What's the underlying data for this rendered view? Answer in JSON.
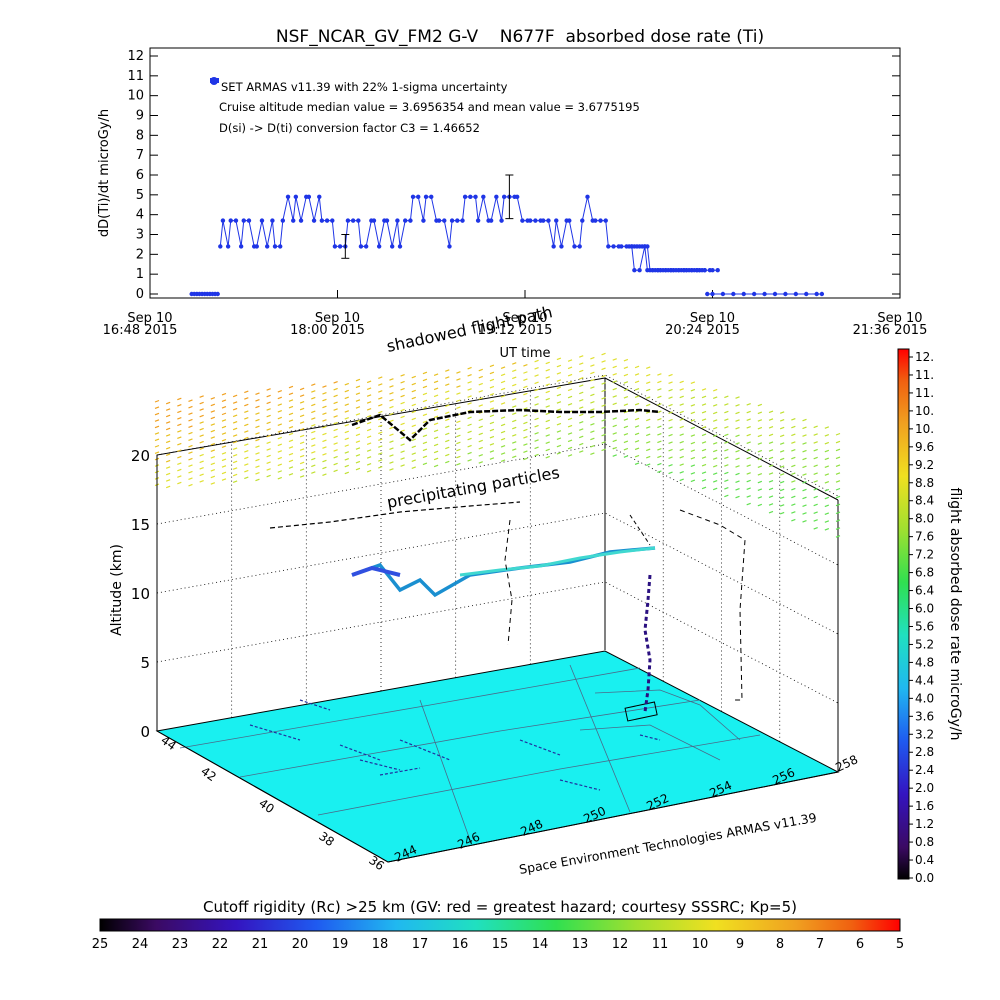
{
  "chart_data": [
    {
      "type": "line",
      "title": "NSF_NCAR_GV_FM2 G-V    N677F  absorbed dose rate (Ti)",
      "ylabel": "dD(Ti)/dt microGy/h",
      "xlabel": "UT time",
      "ylim": [
        0,
        12
      ],
      "yticks": [
        "0",
        "1",
        "2",
        "3",
        "4",
        "5",
        "6",
        "7",
        "8",
        "9",
        "10",
        "11",
        "12"
      ],
      "xticks": [
        {
          "date": "Sep 10",
          "time": "16:48 2015"
        },
        {
          "date": "Sep 10",
          "time": "18:00 2015"
        },
        {
          "date": "Sep 10",
          "time": "19:12 2015"
        },
        {
          "date": "Sep 10",
          "time": "20:24 2015"
        },
        {
          "date": "Sep 10",
          "time": "21:36 2015"
        }
      ],
      "x_minutes_range": [
        0,
        288
      ],
      "legend": [
        "SET ARMAS v11.39 with 22% 1-sigma uncertainty",
        "Cruise altitude median value = 3.6956354 and mean value = 3.6775195",
        "D(si) -> D(ti) conversion factor C3 = 1.46652"
      ],
      "series_color": "#1f35e6",
      "series": [
        {
          "x": [
            16,
            17,
            18,
            19,
            20,
            21,
            22,
            23,
            24,
            25,
            26
          ],
          "y": [
            0,
            0,
            0,
            0,
            0,
            0,
            0,
            0,
            0,
            0,
            0
          ]
        },
        {
          "x": [
            27,
            28,
            30,
            31,
            33,
            35,
            36,
            38,
            40,
            41,
            43,
            45,
            47,
            48,
            50,
            51,
            53,
            55,
            56,
            58,
            60,
            61,
            63,
            65,
            66,
            68,
            70,
            71,
            73,
            75,
            76,
            78,
            80,
            81,
            83,
            85,
            86,
            88,
            90,
            91,
            93,
            95,
            96,
            98,
            100,
            101,
            103,
            105,
            106,
            108,
            110,
            111,
            113,
            115,
            116,
            118,
            120,
            121,
            123,
            125,
            126,
            128,
            130,
            131,
            133,
            135,
            136,
            138,
            140,
            141,
            143,
            145,
            146,
            148,
            150,
            151,
            153,
            155,
            156,
            158,
            160,
            161,
            163,
            165,
            166,
            168,
            170,
            171,
            173,
            175,
            176,
            178,
            180,
            181,
            183,
            185,
            186,
            188,
            190,
            191,
            193,
            195,
            196,
            198,
            200,
            201,
            203,
            205,
            206,
            208,
            210,
            211,
            213,
            215,
            216,
            218
          ],
          "y": [
            2.4,
            3.7,
            2.4,
            3.7,
            3.7,
            2.4,
            3.7,
            3.7,
            2.4,
            2.4,
            3.7,
            2.4,
            3.7,
            2.4,
            2.4,
            3.7,
            4.9,
            3.7,
            4.9,
            3.7,
            4.9,
            4.9,
            3.7,
            4.9,
            3.7,
            3.7,
            3.7,
            2.4,
            2.4,
            2.4,
            3.7,
            3.7,
            3.7,
            2.4,
            2.4,
            3.7,
            3.7,
            2.4,
            3.7,
            3.7,
            2.4,
            3.7,
            2.4,
            3.7,
            3.7,
            4.9,
            4.9,
            3.7,
            4.9,
            4.9,
            3.7,
            3.7,
            3.7,
            2.4,
            3.7,
            3.7,
            3.7,
            4.9,
            4.9,
            4.9,
            3.7,
            4.9,
            3.7,
            3.7,
            4.9,
            3.7,
            4.9,
            4.9,
            4.9,
            4.9,
            3.7,
            3.7,
            3.7,
            3.7,
            3.7,
            3.7,
            3.7,
            2.4,
            3.7,
            2.4,
            3.7,
            3.7,
            2.4,
            2.4,
            3.7,
            4.9,
            3.7,
            3.7,
            3.7,
            3.7,
            2.4,
            2.4,
            2.4,
            2.4,
            2.4,
            2.4,
            1.2,
            1.2,
            2.4,
            1.2,
            1.2,
            1.2,
            1.2,
            1.2,
            1.2,
            1.2,
            1.2,
            1.2,
            1.2,
            1.2,
            1.2,
            1.2,
            1.2,
            1.2,
            1.2,
            1.2
          ]
        },
        {
          "x": [
            184,
            185,
            186,
            187,
            188,
            189,
            190,
            191,
            192,
            193,
            194,
            195,
            196,
            197,
            198,
            199,
            200,
            201,
            202,
            203,
            204,
            205,
            206,
            207,
            208,
            209,
            210,
            211,
            212,
            213
          ],
          "y": [
            2.4,
            2.4,
            2.4,
            2.4,
            2.4,
            2.4,
            2.4,
            2.4,
            1.2,
            1.2,
            1.2,
            1.2,
            1.2,
            1.2,
            1.2,
            1.2,
            1.2,
            1.2,
            1.2,
            1.2,
            1.2,
            1.2,
            1.2,
            1.2,
            1.2,
            1.2,
            1.2,
            1.2,
            1.2,
            1.2
          ]
        },
        {
          "x": [
            214,
            216,
            220,
            224,
            228,
            232,
            236,
            240,
            244,
            248,
            252,
            256,
            258
          ],
          "y": [
            0,
            0,
            0,
            0,
            0,
            0,
            0,
            0,
            0,
            0,
            0,
            0,
            0
          ]
        }
      ],
      "error_bars": [
        {
          "x": 75,
          "y": 2.4,
          "low": 1.8,
          "high": 3.0
        },
        {
          "x": 138,
          "y": 4.9,
          "low": 3.8,
          "high": 6.0
        }
      ]
    },
    {
      "type": "scatter",
      "title": "Space Environment Technologies ARMAS v11.39",
      "ylabel": "Altitude (km)",
      "zticks": [
        "0",
        "5",
        "10",
        "15",
        "20"
      ],
      "lat_ticks": [
        "44",
        "42",
        "40",
        "38",
        "36"
      ],
      "lon_ticks": [
        "244",
        "246",
        "248",
        "250",
        "252",
        "254",
        "256",
        "258"
      ],
      "annotations": [
        "shadowed flight path",
        "precipitating particles"
      ],
      "colorbar": {
        "label": "flight absorbed dose rate microGy/h",
        "ticks": [
          "12.",
          "11.",
          "11.",
          "10.",
          "10.",
          "9.6",
          "9.2",
          "8.8",
          "8.4",
          "8.0",
          "7.6",
          "7.2",
          "6.8",
          "6.4",
          "6.0",
          "5.6",
          "5.2",
          "4.8",
          "4.4",
          "4.0",
          "3.6",
          "3.2",
          "2.8",
          "2.4",
          "2.0",
          "1.6",
          "1.2",
          "0.8",
          "0.4",
          "0.0"
        ]
      },
      "ground_color": "#19f0f0"
    },
    {
      "type": "heatmap",
      "title": "Cutoff rigidity (Rc) >25 km (GV: red = greatest hazard; courtesy SSSRC; Kp=5)",
      "ticks": [
        "25",
        "24",
        "23",
        "22",
        "21",
        "20",
        "19",
        "18",
        "17",
        "16",
        "15",
        "14",
        "13",
        "12",
        "11",
        "10",
        "9",
        "8",
        "7",
        "6",
        "5"
      ]
    }
  ]
}
